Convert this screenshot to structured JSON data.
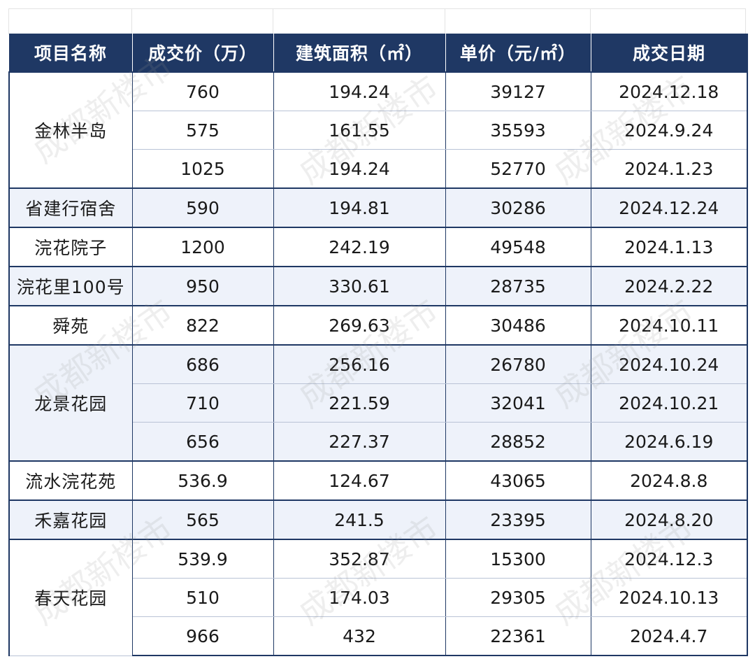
{
  "table": {
    "headers": [
      "项目名称",
      "成交价（万）",
      "建筑面积（㎡）",
      "单价（元/㎡）",
      "成交日期"
    ],
    "groups": [
      {
        "name": "金林半岛",
        "shade": false,
        "rows": [
          [
            "760",
            "194.24",
            "39127",
            "2024.12.18"
          ],
          [
            "575",
            "161.55",
            "35593",
            "2024.9.24"
          ],
          [
            "1025",
            "194.24",
            "52770",
            "2024.1.23"
          ]
        ]
      },
      {
        "name": "省建行宿舍",
        "shade": true,
        "rows": [
          [
            "590",
            "194.81",
            "30286",
            "2024.12.24"
          ]
        ]
      },
      {
        "name": "浣花院子",
        "shade": false,
        "rows": [
          [
            "1200",
            "242.19",
            "49548",
            "2024.1.13"
          ]
        ]
      },
      {
        "name": "浣花里100号",
        "shade": true,
        "rows": [
          [
            "950",
            "330.61",
            "28735",
            "2024.2.22"
          ]
        ]
      },
      {
        "name": "舜苑",
        "shade": false,
        "rows": [
          [
            "822",
            "269.63",
            "30486",
            "2024.10.11"
          ]
        ]
      },
      {
        "name": "龙景花园",
        "shade": true,
        "rows": [
          [
            "686",
            "256.16",
            "26780",
            "2024.10.24"
          ],
          [
            "710",
            "221.59",
            "32041",
            "2024.10.21"
          ],
          [
            "656",
            "227.37",
            "28852",
            "2024.6.19"
          ]
        ]
      },
      {
        "name": "流水浣花苑",
        "shade": false,
        "rows": [
          [
            "536.9",
            "124.67",
            "43065",
            "2024.8.8"
          ]
        ]
      },
      {
        "name": "禾嘉花园",
        "shade": true,
        "rows": [
          [
            "565",
            "241.5",
            "23395",
            "2024.8.20"
          ]
        ]
      },
      {
        "name": "春天花园",
        "shade": false,
        "rows": [
          [
            "539.9",
            "352.87",
            "15300",
            "2024.12.3"
          ],
          [
            "510",
            "174.03",
            "29305",
            "2024.10.13"
          ],
          [
            "966",
            "432",
            "22361",
            "2024.4.7"
          ]
        ]
      }
    ]
  },
  "watermark": {
    "text": "成都新楼市"
  },
  "colors": {
    "header_bg": "#1f3864",
    "header_text": "#ffffff",
    "shade_bg": "#eef2fa",
    "border": "#1f3864"
  }
}
